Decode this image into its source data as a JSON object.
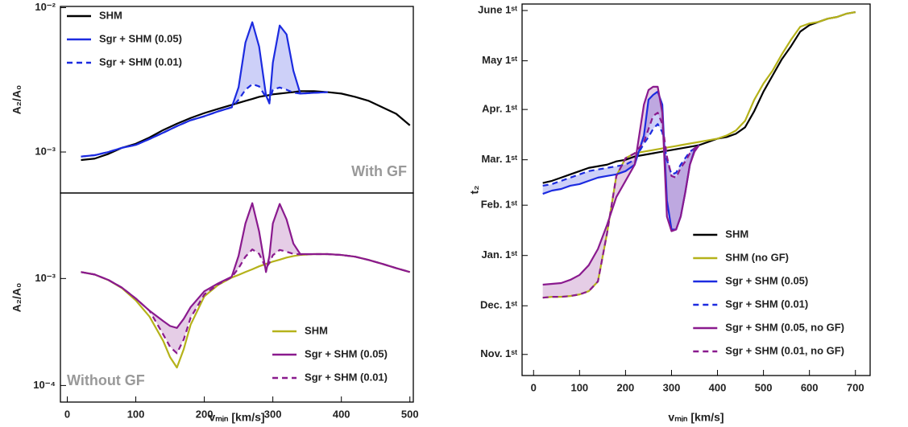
{
  "chart_data": [
    {
      "type": "line",
      "ylabel": "A₂/A₀",
      "annotation": "With GF",
      "log_y": true,
      "legend": "upper left",
      "xlim": [
        -10,
        505
      ],
      "ylim": [
        0.00052,
        0.0102
      ],
      "yticks": [
        {
          "value": 0.001,
          "label": "10⁻³"
        },
        {
          "value": 0.01,
          "label": "10⁻²"
        }
      ],
      "x": [
        20,
        40,
        60,
        80,
        100,
        120,
        140,
        160,
        180,
        200,
        220,
        240,
        250,
        260,
        270,
        280,
        290,
        295,
        300,
        310,
        320,
        330,
        340,
        360,
        380,
        400,
        420,
        440,
        460,
        480,
        500
      ],
      "series": [
        {
          "name": "SHM",
          "color": "#000000",
          "dashed": false,
          "values": [
            0.00088,
            0.0009,
            0.00097,
            0.00107,
            0.00114,
            0.00126,
            0.00142,
            0.00157,
            0.00172,
            0.00186,
            0.00199,
            0.00212,
            0.00219,
            0.00226,
            0.00233,
            0.00241,
            0.00246,
            0.00248,
            0.00251,
            0.00254,
            0.00257,
            0.0026,
            0.00264,
            0.00264,
            0.0026,
            0.00254,
            0.00241,
            0.00226,
            0.00204,
            0.00184,
            0.00153
          ]
        },
        {
          "name": "Sgr + SHM (0.05)",
          "color": "#1c2be0",
          "dashed": false,
          "values": [
            0.00093,
            0.00095,
            0.001,
            0.00107,
            0.00112,
            0.00123,
            0.00136,
            0.00151,
            0.00166,
            0.00177,
            0.00191,
            0.00204,
            0.00281,
            0.00573,
            0.00793,
            0.00537,
            0.00247,
            0.00217,
            0.00415,
            0.00752,
            0.00653,
            0.00365,
            0.00254,
            0.00257,
            0.0026,
            null,
            null,
            null,
            null,
            null,
            null
          ]
        },
        {
          "name": "Sgr + SHM (0.01)",
          "color": "#1c2be0",
          "dashed": true,
          "values": [
            0.00093,
            0.00095,
            0.001,
            0.00107,
            0.00112,
            0.00123,
            0.00136,
            0.00151,
            0.00166,
            0.00177,
            0.00191,
            0.00204,
            0.0023,
            0.0027,
            0.00295,
            0.00285,
            0.0024,
            0.00225,
            0.0027,
            0.0028,
            0.0027,
            0.00258,
            0.00254,
            0.00257,
            0.0026,
            null,
            null,
            null,
            null,
            null,
            null
          ]
        }
      ]
    },
    {
      "type": "line",
      "ylabel": "A₂/A₀",
      "xlabel": "vₘᵢₙ [km/s]",
      "annotation": "Without GF",
      "log_y": true,
      "legend": "lower right",
      "xlim": [
        -10,
        505
      ],
      "ylim": [
        7e-05,
        0.0063
      ],
      "xticks": [
        0,
        100,
        200,
        300,
        400,
        500
      ],
      "yticks": [
        {
          "value": 0.0001,
          "label": "10⁻⁴"
        },
        {
          "value": 0.001,
          "label": "10⁻³"
        }
      ],
      "x": [
        20,
        40,
        60,
        80,
        100,
        120,
        140,
        150,
        160,
        170,
        180,
        200,
        220,
        240,
        250,
        260,
        270,
        280,
        290,
        295,
        300,
        310,
        320,
        330,
        340,
        360,
        380,
        400,
        420,
        440,
        460,
        480,
        500
      ],
      "series": [
        {
          "name": "SHM",
          "color": "#b5b21a",
          "dashed": false,
          "values": [
            0.00115,
            0.00109,
            0.000966,
            0.000811,
            0.000624,
            0.000441,
            0.000261,
            0.000184,
            0.000147,
            0.000219,
            0.00037,
            0.000681,
            0.000869,
            0.00102,
            0.00108,
            0.00115,
            0.00122,
            0.0013,
            0.00137,
            0.0014,
            0.00144,
            0.0015,
            0.00157,
            0.00162,
            0.00166,
            0.00169,
            0.00169,
            0.00166,
            0.0016,
            0.00149,
            0.00137,
            0.00125,
            0.00115
          ]
        },
        {
          "name": "Sgr + SHM (0.05)",
          "color": "#8a1a8e",
          "dashed": false,
          "values": [
            0.00115,
            0.00109,
            0.00097,
            0.00082,
            0.00065,
            0.0005,
            0.0004,
            0.00036,
            0.000345,
            0.00042,
            0.00054,
            0.00076,
            0.0009,
            0.00104,
            0.00163,
            0.00327,
            0.00506,
            0.00275,
            0.00115,
            0.00163,
            0.00327,
            0.00498,
            0.00357,
            0.00212,
            0.00169,
            0.00169,
            0.00169,
            0.00166,
            0.0016,
            0.00149,
            0.00137,
            0.00125,
            0.00115
          ]
        },
        {
          "name": "Sgr + SHM (0.01)",
          "color": "#8a1a8e",
          "dashed": true,
          "values": [
            0.00115,
            0.00109,
            0.00097,
            0.00082,
            0.00065,
            0.0005,
            0.0003,
            0.00023,
            0.0002,
            0.00027,
            0.00043,
            0.00071,
            0.00088,
            0.00103,
            0.00125,
            0.0016,
            0.00187,
            0.0017,
            0.00125,
            0.0014,
            0.00165,
            0.00185,
            0.00178,
            0.0017,
            0.00168,
            0.00169,
            0.00169,
            0.00166,
            0.0016,
            0.00149,
            0.00137,
            0.00125,
            0.00115
          ]
        }
      ]
    },
    {
      "type": "line",
      "ylabel": "t₂",
      "xlabel": "vₘᵢₙ [km/s]",
      "log_y": false,
      "legend": "lower right",
      "xlim": [
        -25,
        732
      ],
      "ylim": [
        -74,
        155
      ],
      "xticks": [
        0,
        100,
        200,
        300,
        400,
        500,
        600,
        700
      ],
      "yticks": [
        {
          "value": -61,
          "label": "Nov. 1ˢᵗ"
        },
        {
          "value": -31,
          "label": "Dec. 1ˢᵗ"
        },
        {
          "value": 0,
          "label": "Jan. 1ˢᵗ"
        },
        {
          "value": 31,
          "label": "Feb. 1ˢᵗ"
        },
        {
          "value": 59,
          "label": "Mar. 1ˢᵗ"
        },
        {
          "value": 90,
          "label": "Apr. 1ˢᵗ"
        },
        {
          "value": 120,
          "label": "May 1ˢᵗ"
        },
        {
          "value": 151,
          "label": "June 1ˢᵗ"
        }
      ],
      "x": [
        20,
        40,
        60,
        80,
        100,
        120,
        140,
        160,
        180,
        200,
        220,
        240,
        250,
        260,
        270,
        280,
        290,
        300,
        310,
        320,
        330,
        340,
        350,
        360,
        380,
        400,
        420,
        440,
        460,
        480,
        500,
        520,
        540,
        560,
        580,
        600,
        620,
        640,
        660,
        680,
        700
      ],
      "series": [
        {
          "name": "SHM",
          "color": "#000000",
          "dashed": false,
          "values": [
            44.7,
            46,
            48,
            50,
            52,
            54,
            55,
            56,
            58,
            59,
            61,
            62,
            62.5,
            63,
            63.5,
            64,
            64.5,
            65,
            65.5,
            66,
            66.5,
            67,
            67.5,
            68,
            70,
            72,
            73,
            75,
            79,
            89,
            101,
            111,
            121,
            129,
            138,
            142,
            144,
            146,
            147,
            149,
            150
          ]
        },
        {
          "name": "SHM (no GF)",
          "color": "#b5b21a",
          "dashed": false,
          "values": [
            -26,
            -25.5,
            -25.5,
            -25,
            -24,
            -22,
            -16,
            14,
            49,
            60,
            63,
            64,
            64.5,
            65,
            65.5,
            66,
            66.5,
            67,
            67.5,
            68,
            68.5,
            69,
            69.5,
            70,
            71,
            72,
            74,
            77,
            83,
            96,
            106,
            114,
            124,
            133,
            141,
            143,
            144,
            146,
            147,
            149,
            150
          ]
        },
        {
          "name": "Sgr + SHM (0.05)",
          "color": "#1c2be0",
          "dashed": false,
          "values": [
            38,
            40,
            41,
            43,
            44,
            46,
            48,
            49,
            50,
            52,
            56,
            74,
            96,
            99,
            101,
            93,
            34,
            16,
            16,
            24,
            39,
            56,
            65,
            68,
            null,
            null,
            null,
            null,
            null,
            null,
            null,
            null,
            null,
            null,
            null,
            null,
            null,
            null,
            null,
            null,
            null
          ]
        },
        {
          "name": "Sgr + SHM (0.01)",
          "color": "#1c2be0",
          "dashed": true,
          "values": [
            43,
            44,
            46,
            48,
            50,
            52,
            53,
            54,
            55,
            56,
            59,
            69,
            73,
            78,
            81,
            76,
            59,
            50,
            51,
            56,
            60,
            64,
            66,
            68,
            null,
            null,
            null,
            null,
            null,
            null,
            null,
            null,
            null,
            null,
            null,
            null,
            null,
            null,
            null,
            null,
            null
          ]
        },
        {
          "name": "Sgr + SHM (0.05, no GF)",
          "color": "#8a1a8e",
          "dashed": false,
          "values": [
            -18,
            -17.5,
            -17,
            -15,
            -12,
            -6,
            4,
            19,
            36,
            46,
            56,
            93,
            102,
            104,
            104,
            88,
            24,
            15,
            16,
            24,
            39,
            56,
            64,
            68,
            null,
            null,
            null,
            null,
            null,
            null,
            null,
            null,
            null,
            null,
            null,
            null,
            null,
            null,
            null,
            null,
            null
          ]
        },
        {
          "name": "Sgr + SHM (0.01, no GF)",
          "color": "#8a1a8e",
          "dashed": true,
          "values": [
            -26,
            -25.5,
            -25.5,
            -25,
            -24,
            -22,
            -16,
            14,
            49,
            60,
            63,
            70,
            78,
            86,
            88,
            81,
            61,
            49,
            48,
            54,
            58,
            63,
            66,
            68,
            null,
            null,
            null,
            null,
            null,
            null,
            null,
            null,
            null,
            null,
            null,
            null,
            null,
            null,
            null,
            null,
            null
          ]
        }
      ]
    }
  ]
}
